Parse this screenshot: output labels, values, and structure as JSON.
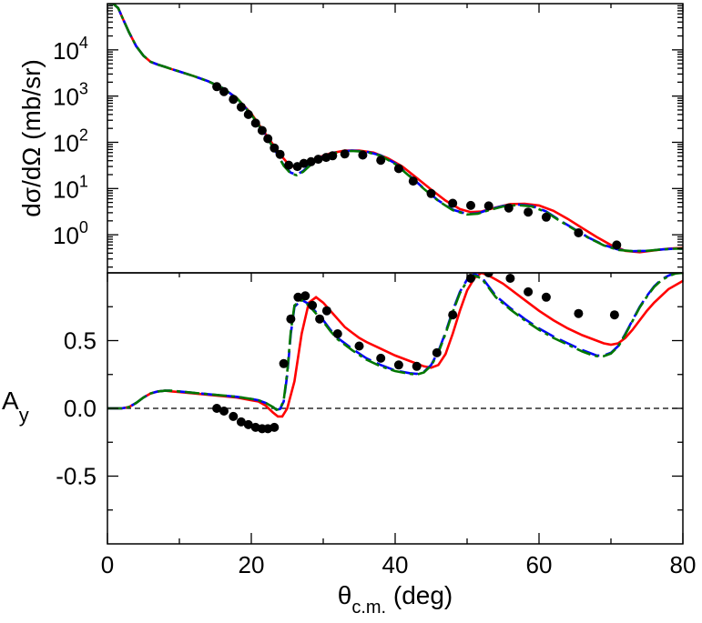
{
  "chart_data": [
    {
      "type": "scatter",
      "panel": "top",
      "ylabel": "dσ/dΩ (mb/sr)",
      "yscale": "log",
      "xlim": [
        0,
        80
      ],
      "ylim": [
        0.15,
        100000
      ],
      "y_tick_labels": [
        {
          "mantissa": "10",
          "exp": "4",
          "value": 10000
        },
        {
          "mantissa": "10",
          "exp": "3",
          "value": 1000
        },
        {
          "mantissa": "10",
          "exp": "2",
          "value": 100
        },
        {
          "mantissa": "10",
          "exp": "1",
          "value": 10
        },
        {
          "mantissa": "10",
          "exp": "0",
          "value": 1
        }
      ],
      "points": {
        "x": [
          15.2,
          16.2,
          17.5,
          18.6,
          19.6,
          20.6,
          21.5,
          22.3,
          23.2,
          24.0,
          25.2,
          26.4,
          27.3,
          28.3,
          29.3,
          30.4,
          31.3,
          33.0,
          35.5,
          38.0,
          40.5,
          42.5,
          45.0,
          48.0,
          50.5,
          53.0,
          55.8,
          58.5,
          61.0,
          65.5,
          70.8
        ],
        "y": [
          1600,
          1250,
          850,
          580,
          400,
          260,
          180,
          120,
          75,
          55,
          32,
          30,
          35,
          38,
          43,
          47,
          51,
          56,
          53,
          41,
          27,
          14.5,
          7.8,
          4.8,
          4.3,
          4.2,
          3.8,
          3.1,
          2.4,
          1.1,
          0.6
        ]
      },
      "series": [
        {
          "name": "",
          "color": "#ff0000",
          "dash": "solid",
          "x": [
            0.2,
            0.8,
            1.5,
            2.2,
            3,
            4,
            5,
            6,
            7,
            8,
            9,
            10,
            12,
            14,
            16,
            18,
            20,
            22,
            24,
            25,
            25.8,
            26.5,
            27.5,
            29,
            31,
            33,
            35,
            37,
            39,
            41,
            43,
            45,
            47,
            49,
            50.5,
            52,
            54,
            56,
            58,
            60,
            62,
            64,
            66,
            68,
            70,
            72,
            74,
            76,
            78,
            80
          ],
          "y": [
            100000,
            100000,
            80000,
            45000,
            24000,
            12000,
            7500,
            5500,
            4800,
            4300,
            3800,
            3400,
            2700,
            2100,
            1500,
            900,
            420,
            150,
            55,
            36,
            30,
            30,
            34,
            45,
            58,
            66,
            66,
            60,
            45,
            30,
            17,
            9.5,
            5.5,
            3.6,
            3.1,
            3.2,
            3.9,
            4.6,
            4.7,
            4.3,
            3.3,
            2.2,
            1.4,
            0.9,
            0.6,
            0.45,
            0.42,
            0.46,
            0.5,
            0.52
          ]
        },
        {
          "name": "",
          "color": "#0000ff",
          "dash": "long-dash",
          "x": [
            0.2,
            0.8,
            1.5,
            2.2,
            3,
            4,
            5,
            6,
            7,
            8,
            9,
            10,
            12,
            14,
            16,
            18,
            20,
            22,
            23.5,
            24.5,
            25.5,
            26.3,
            27.2,
            28.5,
            30,
            32,
            34,
            36,
            38,
            40,
            42,
            44,
            46,
            48,
            50,
            51.5,
            53,
            55,
            57,
            59,
            61,
            63,
            65,
            67,
            69,
            71,
            73,
            75,
            77,
            79,
            80
          ],
          "y": [
            100000,
            100000,
            80000,
            45000,
            24000,
            12000,
            7500,
            5500,
            4800,
            4300,
            3800,
            3400,
            2700,
            2100,
            1500,
            900,
            400,
            140,
            60,
            32,
            22,
            20,
            24,
            36,
            50,
            62,
            66,
            63,
            52,
            35,
            19,
            10,
            5.5,
            3.5,
            2.8,
            2.9,
            3.5,
            4.2,
            4.5,
            4.2,
            3.2,
            2.0,
            1.3,
            0.85,
            0.6,
            0.48,
            0.44,
            0.45,
            0.48,
            0.5,
            0.5
          ]
        },
        {
          "name": "",
          "color": "#007700",
          "dash": "dash-dot",
          "x": [
            0.2,
            0.8,
            1.5,
            2.2,
            3,
            4,
            5,
            6,
            7,
            8,
            9,
            10,
            12,
            14,
            16,
            18,
            20,
            22,
            23.5,
            24.5,
            25.5,
            26.3,
            27.2,
            28.5,
            30,
            32,
            34,
            36,
            38,
            40,
            42,
            44,
            46,
            48,
            50,
            51.5,
            53,
            55,
            57,
            59,
            61,
            63,
            65,
            67,
            69,
            71,
            73,
            75,
            77,
            79,
            80
          ],
          "y": [
            100000,
            100000,
            80000,
            45000,
            24000,
            12000,
            7500,
            5500,
            4800,
            4300,
            3800,
            3400,
            2700,
            2100,
            1500,
            900,
            400,
            140,
            60,
            31,
            21,
            19.5,
            23,
            35,
            49,
            61,
            65,
            62,
            51,
            34,
            18.5,
            9.8,
            5.4,
            3.4,
            2.75,
            2.85,
            3.4,
            4.1,
            4.4,
            4.1,
            3.1,
            1.95,
            1.28,
            0.84,
            0.59,
            0.47,
            0.44,
            0.45,
            0.48,
            0.5,
            0.5
          ]
        }
      ]
    },
    {
      "type": "scatter",
      "panel": "bottom",
      "ylabel_main": "A",
      "ylabel_sub": "y",
      "xlabel_main": "θ",
      "xlabel_sub": "c.m.",
      "xlabel_rest": " (deg)",
      "xlim": [
        0,
        80
      ],
      "ylim": [
        -1.0,
        1.0
      ],
      "x_ticks": [
        0,
        20,
        40,
        60,
        80
      ],
      "x_tick_labels": [
        "0",
        "20",
        "40",
        "60",
        "80"
      ],
      "y_ticks": [
        0.5,
        0.0,
        -0.5
      ],
      "y_tick_labels": [
        "0.5",
        "0.0",
        "-0.5"
      ],
      "reference_line": {
        "y": 0.0,
        "style": "dashed"
      },
      "points": {
        "x": [
          15.2,
          16.2,
          17.5,
          18.6,
          19.6,
          20.6,
          21.5,
          22.3,
          23.2,
          24.5,
          25.5,
          26.5,
          27.5,
          28.5,
          29.5,
          30.5,
          32.0,
          35.0,
          38.0,
          40.5,
          43.0,
          45.8,
          48.0,
          50.5,
          53.0,
          56.0,
          58.5,
          61.0,
          65.5,
          70.5
        ],
        "y": [
          0.0,
          -0.02,
          -0.06,
          -0.1,
          -0.12,
          -0.14,
          -0.15,
          -0.15,
          -0.14,
          0.33,
          0.66,
          0.82,
          0.83,
          0.76,
          0.66,
          0.72,
          0.55,
          0.46,
          0.37,
          0.32,
          0.31,
          0.41,
          0.69,
          0.96,
          1.0,
          0.96,
          0.86,
          0.82,
          0.7,
          0.69
        ]
      },
      "series": [
        {
          "name": "",
          "color": "#ff0000",
          "dash": "solid",
          "x": [
            0,
            2,
            3,
            4,
            5,
            6,
            7,
            8,
            9,
            10,
            12,
            14,
            16,
            18,
            20,
            21,
            22,
            23,
            23.7,
            24.3,
            25,
            26,
            27,
            28,
            29,
            30,
            31,
            32,
            33,
            34,
            35,
            36,
            38,
            40,
            42,
            44,
            45,
            46,
            47,
            48,
            49,
            50,
            51,
            52,
            53,
            54,
            55,
            56,
            58,
            60,
            62,
            64,
            66,
            68,
            69,
            70,
            71,
            72,
            73,
            74,
            75,
            76,
            78,
            80
          ],
          "y": [
            0,
            0,
            0.01,
            0.04,
            0.08,
            0.11,
            0.125,
            0.13,
            0.125,
            0.12,
            0.11,
            0.1,
            0.09,
            0.08,
            0.06,
            0.05,
            0.02,
            -0.03,
            -0.06,
            -0.06,
            0.0,
            0.2,
            0.55,
            0.78,
            0.82,
            0.78,
            0.72,
            0.66,
            0.6,
            0.56,
            0.52,
            0.49,
            0.44,
            0.39,
            0.35,
            0.31,
            0.3,
            0.32,
            0.4,
            0.55,
            0.72,
            0.87,
            0.96,
            1.0,
            0.98,
            0.95,
            0.92,
            0.88,
            0.8,
            0.72,
            0.65,
            0.59,
            0.54,
            0.5,
            0.48,
            0.47,
            0.48,
            0.52,
            0.58,
            0.65,
            0.72,
            0.78,
            0.88,
            0.94
          ]
        },
        {
          "name": "",
          "color": "#0000ff",
          "dash": "long-dash",
          "x": [
            0,
            2,
            3,
            4,
            5,
            6,
            7,
            8,
            9,
            10,
            12,
            14,
            16,
            18,
            20,
            21,
            22,
            23,
            23.5,
            24,
            24.5,
            25,
            25.5,
            26,
            27,
            28,
            29,
            30,
            31,
            32,
            34,
            36,
            38,
            40,
            42,
            43,
            44,
            45,
            46,
            47,
            48,
            49,
            50,
            51,
            52,
            53,
            54,
            56,
            58,
            60,
            62,
            64,
            66,
            67,
            68,
            69,
            70,
            71,
            72,
            73,
            74,
            75,
            76,
            77,
            78,
            79,
            80
          ],
          "y": [
            0,
            0,
            0.01,
            0.04,
            0.08,
            0.11,
            0.125,
            0.13,
            0.13,
            0.125,
            0.115,
            0.105,
            0.095,
            0.085,
            0.07,
            0.06,
            0.04,
            0.01,
            -0.01,
            -0.005,
            0.05,
            0.25,
            0.55,
            0.75,
            0.8,
            0.77,
            0.71,
            0.65,
            0.58,
            0.52,
            0.44,
            0.37,
            0.32,
            0.28,
            0.26,
            0.255,
            0.27,
            0.32,
            0.42,
            0.56,
            0.72,
            0.86,
            0.95,
            0.99,
            0.97,
            0.9,
            0.83,
            0.74,
            0.66,
            0.59,
            0.53,
            0.48,
            0.43,
            0.41,
            0.39,
            0.39,
            0.41,
            0.46,
            0.55,
            0.65,
            0.75,
            0.83,
            0.9,
            0.95,
            0.98,
            1.0,
            1.0
          ]
        },
        {
          "name": "",
          "color": "#007700",
          "dash": "dash-dot",
          "x": [
            0,
            2,
            3,
            4,
            5,
            6,
            7,
            8,
            9,
            10,
            12,
            14,
            16,
            18,
            20,
            21,
            22,
            23,
            23.5,
            24,
            24.5,
            25,
            25.5,
            26,
            27,
            28,
            29,
            30,
            31,
            32,
            34,
            36,
            38,
            40,
            42,
            43,
            44,
            45,
            46,
            47,
            48,
            49,
            50,
            51,
            52,
            53,
            54,
            56,
            58,
            60,
            62,
            64,
            66,
            67,
            68,
            69,
            70,
            71,
            72,
            73,
            74,
            75,
            76,
            77,
            78,
            79,
            80
          ],
          "y": [
            0,
            0,
            0.01,
            0.04,
            0.08,
            0.11,
            0.125,
            0.13,
            0.13,
            0.125,
            0.115,
            0.105,
            0.095,
            0.085,
            0.07,
            0.06,
            0.04,
            0.01,
            -0.01,
            -0.005,
            0.06,
            0.27,
            0.57,
            0.76,
            0.8,
            0.76,
            0.7,
            0.64,
            0.57,
            0.51,
            0.43,
            0.36,
            0.31,
            0.275,
            0.255,
            0.25,
            0.265,
            0.315,
            0.41,
            0.55,
            0.71,
            0.85,
            0.94,
            0.98,
            0.96,
            0.89,
            0.82,
            0.73,
            0.65,
            0.58,
            0.52,
            0.47,
            0.42,
            0.4,
            0.385,
            0.385,
            0.405,
            0.455,
            0.545,
            0.645,
            0.745,
            0.825,
            0.895,
            0.945,
            0.975,
            0.995,
            1.0
          ]
        }
      ]
    }
  ]
}
